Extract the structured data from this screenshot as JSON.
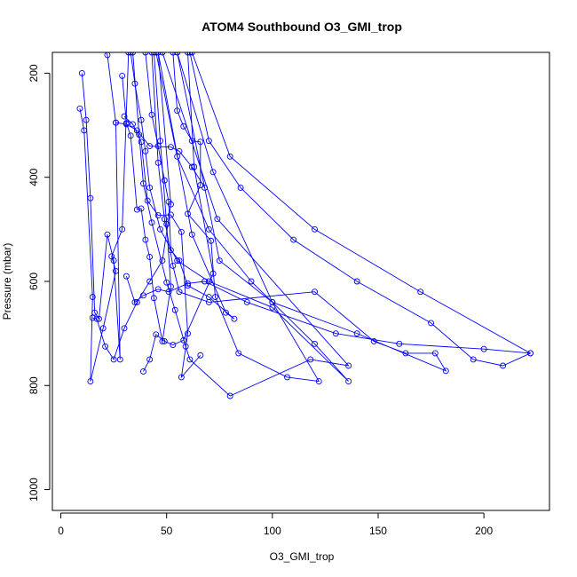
{
  "chart_data": {
    "type": "line",
    "title": "ATOM4 Southbound O3_GMI_trop",
    "xlabel": "O3_GMI_trop",
    "ylabel": "Pressure (mbar)",
    "xlim": [
      -4,
      231
    ],
    "ylim": [
      1040,
      160
    ],
    "y_reversed": true,
    "grid": false,
    "legend": "none",
    "x_ticks": [
      0,
      50,
      100,
      150,
      200
    ],
    "x_tick_labels": [
      "0",
      "50",
      "100",
      "150",
      "200"
    ],
    "y_ticks": [
      200,
      400,
      600,
      800,
      1000
    ],
    "y_tick_labels": [
      "200",
      "400",
      "600",
      "800",
      "1000"
    ],
    "color": "#0000ff",
    "series": [
      {
        "values": [
          [
            10,
            200
          ],
          [
            12,
            290
          ],
          [
            14,
            440
          ],
          [
            16,
            660
          ],
          [
            18,
            672
          ],
          [
            22,
            510
          ],
          [
            25,
            560
          ],
          [
            28,
            750
          ],
          [
            26,
            295
          ],
          [
            22,
            165
          ],
          [
            19,
            130
          ]
        ]
      },
      {
        "values": [
          [
            9,
            268
          ],
          [
            11,
            310
          ],
          [
            15,
            630
          ],
          [
            14,
            792
          ],
          [
            20,
            690
          ],
          [
            26,
            580
          ],
          [
            24,
            552
          ],
          [
            29,
            500
          ],
          [
            32,
            160
          ]
        ]
      },
      {
        "values": [
          [
            29,
            205
          ],
          [
            31,
            296
          ],
          [
            33,
            320
          ],
          [
            36,
            462
          ],
          [
            38,
            460
          ],
          [
            40,
            520
          ],
          [
            42,
            553
          ],
          [
            44,
            632
          ],
          [
            48,
            715
          ],
          [
            52,
            610
          ],
          [
            50,
            490
          ],
          [
            47,
            330
          ],
          [
            44,
            160
          ]
        ]
      },
      {
        "values": [
          [
            30,
            283
          ],
          [
            34,
            298
          ],
          [
            38,
            332
          ],
          [
            41,
            445
          ],
          [
            46,
            473
          ],
          [
            52,
            472
          ],
          [
            57,
            505
          ],
          [
            60,
            700
          ],
          [
            57,
            784
          ],
          [
            66,
            742
          ]
        ]
      },
      {
        "values": [
          [
            34,
            160
          ],
          [
            37,
            318
          ],
          [
            39,
            412
          ],
          [
            43,
            487
          ],
          [
            50,
            602
          ],
          [
            54,
            655
          ],
          [
            59,
            725
          ],
          [
            61,
            750
          ],
          [
            80,
            820
          ],
          [
            118,
            750
          ],
          [
            136,
            762
          ],
          [
            74,
            480
          ],
          [
            48,
            160
          ]
        ]
      },
      {
        "values": [
          [
            40,
            160
          ],
          [
            43,
            280
          ],
          [
            46,
            340
          ],
          [
            49,
            406
          ],
          [
            51,
            447
          ],
          [
            52,
            540
          ],
          [
            56,
            560
          ],
          [
            60,
            608
          ],
          [
            70,
            630
          ],
          [
            82,
            672
          ],
          [
            78,
            660
          ],
          [
            62,
            510
          ],
          [
            46,
            160
          ]
        ]
      },
      {
        "values": [
          [
            53,
            160
          ],
          [
            55,
            272
          ],
          [
            58,
            302
          ],
          [
            62,
            330
          ],
          [
            66,
            332
          ],
          [
            66,
            415
          ],
          [
            60,
            470
          ],
          [
            71,
            522
          ],
          [
            73,
            630
          ],
          [
            84,
            738
          ],
          [
            107,
            784
          ],
          [
            122,
            792
          ],
          [
            100,
            640
          ],
          [
            72,
            390
          ],
          [
            55,
            160
          ]
        ]
      },
      {
        "values": [
          [
            39,
            773
          ],
          [
            42,
            750
          ],
          [
            45,
            702
          ],
          [
            49,
            715
          ],
          [
            53,
            722
          ],
          [
            58,
            713
          ],
          [
            72,
            585
          ],
          [
            63,
            380
          ],
          [
            60,
            160
          ]
        ]
      },
      {
        "values": [
          [
            43,
            160
          ],
          [
            46,
            372
          ],
          [
            49,
            480
          ],
          [
            53,
            570
          ],
          [
            56,
            620
          ],
          [
            70,
            640
          ],
          [
            120,
            620
          ],
          [
            148,
            715
          ],
          [
            163,
            738
          ],
          [
            177,
            738
          ],
          [
            182,
            772
          ],
          [
            140,
            700
          ],
          [
            100,
            640
          ],
          [
            75,
            560
          ],
          [
            55,
            160
          ]
        ]
      },
      {
        "values": [
          [
            61,
            160
          ],
          [
            70,
            330
          ],
          [
            85,
            420
          ],
          [
            110,
            520
          ],
          [
            140,
            600
          ],
          [
            175,
            680
          ],
          [
            195,
            750
          ],
          [
            209,
            762
          ],
          [
            222,
            738
          ],
          [
            170,
            620
          ],
          [
            120,
            500
          ],
          [
            80,
            360
          ],
          [
            62,
            160
          ]
        ]
      },
      {
        "values": [
          [
            33,
            160
          ],
          [
            35,
            220
          ],
          [
            38,
            290
          ],
          [
            40,
            350
          ],
          [
            42,
            420
          ],
          [
            47,
            500
          ],
          [
            55,
            560
          ],
          [
            70,
            600
          ],
          [
            100,
            650
          ],
          [
            136,
            792
          ],
          [
            120,
            720
          ],
          [
            90,
            600
          ],
          [
            70,
            500
          ],
          [
            55,
            360
          ],
          [
            45,
            160
          ]
        ]
      },
      {
        "values": [
          [
            15,
            670
          ],
          [
            17,
            672
          ],
          [
            21,
            725
          ],
          [
            25,
            750
          ],
          [
            30,
            690
          ],
          [
            36,
            640
          ],
          [
            42,
            600
          ],
          [
            48,
            560
          ],
          [
            52,
            452
          ],
          [
            46,
            160
          ]
        ]
      },
      {
        "values": [
          [
            31,
            590
          ],
          [
            35,
            640
          ],
          [
            39,
            627
          ],
          [
            46,
            615
          ],
          [
            51,
            620
          ],
          [
            60,
            604
          ],
          [
            68,
            600
          ],
          [
            88,
            640
          ],
          [
            130,
            700
          ],
          [
            160,
            720
          ],
          [
            200,
            730
          ],
          [
            222,
            738
          ]
        ]
      },
      {
        "values": [
          [
            26,
            295
          ],
          [
            31,
            298
          ],
          [
            36,
            310
          ],
          [
            42,
            340
          ],
          [
            52,
            342
          ],
          [
            56,
            350
          ],
          [
            62,
            380
          ],
          [
            68,
            420
          ]
        ]
      }
    ]
  }
}
